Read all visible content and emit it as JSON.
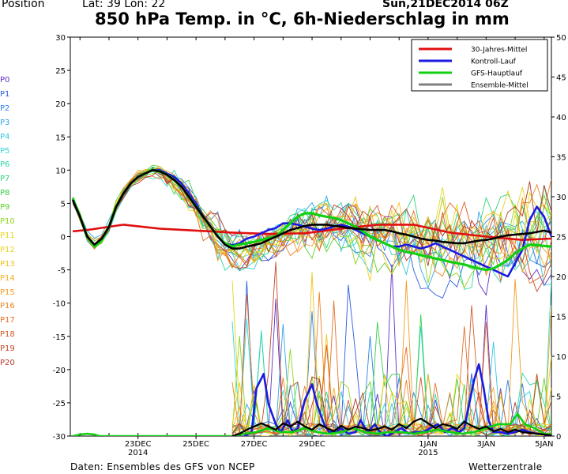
{
  "header": {
    "position_label": "Position",
    "lat_lon": "Lat: 39 Lon: 22",
    "date": "Sun,21DEC2014 06Z"
  },
  "title": "850 hPa Temp. in °C, 6h-Niederschlag in mm",
  "footer": {
    "source": "Daten: Ensembles des GFS von NCEP",
    "brand": "Wetterzentrale"
  },
  "members": [
    {
      "label": "P0",
      "color": "#5b2fc9"
    },
    {
      "label": "P1",
      "color": "#2a5be0"
    },
    {
      "label": "P2",
      "color": "#2a83e8"
    },
    {
      "label": "P3",
      "color": "#33a6e8"
    },
    {
      "label": "P4",
      "color": "#33c8e0"
    },
    {
      "label": "P5",
      "color": "#33d8d8"
    },
    {
      "label": "P6",
      "color": "#2fd6a8"
    },
    {
      "label": "P7",
      "color": "#2fd478"
    },
    {
      "label": "P8",
      "color": "#36d04a"
    },
    {
      "label": "P9",
      "color": "#5ed22e"
    },
    {
      "label": "P10",
      "color": "#8fd61e"
    },
    {
      "label": "P11",
      "color": "#e4d81a"
    },
    {
      "label": "P12",
      "color": "#f0d01a"
    },
    {
      "label": "P13",
      "color": "#f4c21c"
    },
    {
      "label": "P14",
      "color": "#f4ad1e"
    },
    {
      "label": "P15",
      "color": "#f49a22"
    },
    {
      "label": "P16",
      "color": "#ee8424"
    },
    {
      "label": "P17",
      "color": "#e46e26"
    },
    {
      "label": "P18",
      "color": "#d45a28"
    },
    {
      "label": "P19",
      "color": "#c4482a"
    },
    {
      "label": "P20",
      "color": "#b4382c"
    }
  ],
  "chart_data": {
    "type": "line",
    "x_unit": "hours after 21DEC2014 06Z",
    "xlim": [
      0,
      384
    ],
    "ylim": [
      -30,
      30
    ],
    "y_ticks": [
      -30,
      -25,
      -20,
      -15,
      -10,
      -5,
      0,
      5,
      10,
      15,
      20,
      25,
      30
    ],
    "y2lim": [
      0,
      50
    ],
    "y2_ticks": [
      0,
      5,
      10,
      15,
      20,
      25,
      30,
      35,
      40,
      45,
      50
    ],
    "x_ticks": [
      {
        "x": 42,
        "label": "23DEC",
        "label2": "2014"
      },
      {
        "x": 90,
        "label": "25DEC",
        "label2": ""
      },
      {
        "x": 138,
        "label": "27DEC",
        "label2": ""
      },
      {
        "x": 186,
        "label": "29DEC",
        "label2": ""
      },
      {
        "x": 282,
        "label": "1JAN",
        "label2": "2015"
      },
      {
        "x": 330,
        "label": "3JAN",
        "label2": ""
      },
      {
        "x": 378,
        "label": "5JAN",
        "label2": ""
      }
    ],
    "grid": false,
    "legend_position": "top-right",
    "legend": [
      {
        "name": "30-Jahres-Mittel",
        "color": "#e01010"
      },
      {
        "name": "Kontroll-Lauf",
        "color": "#1a1ae0"
      },
      {
        "name": "GFS-Hauptlauf",
        "color": "#10d010"
      },
      {
        "name": "Ensemble-Mittel",
        "color": "#808080"
      }
    ],
    "temp_series": [
      {
        "key": "climate",
        "color": "#e01010",
        "width": 2.6,
        "x": [
          -12,
          0,
          30,
          60,
          90,
          120,
          150,
          180,
          210,
          240,
          270,
          300,
          330,
          360,
          384
        ],
        "y": [
          0.8,
          1,
          1.8,
          1.2,
          0.9,
          0.6,
          0.4,
          0.5,
          1.2,
          1.8,
          1.8,
          0.6,
          0,
          -0.5,
          -0.3
        ]
      },
      {
        "key": "control",
        "color": "#1a1ae0",
        "width": 2.6,
        "x": [
          -12,
          -6,
          0,
          6,
          12,
          18,
          24,
          30,
          36,
          42,
          48,
          54,
          60,
          66,
          72,
          78,
          84,
          90,
          96,
          102,
          108,
          114,
          120,
          126,
          132,
          138,
          144,
          150,
          156,
          162,
          168,
          174,
          180,
          186,
          192,
          198,
          204,
          210,
          216,
          222,
          228,
          234,
          240,
          246,
          252,
          258,
          264,
          270,
          276,
          282,
          288,
          294,
          300,
          306,
          312,
          318,
          324,
          330,
          336,
          342,
          348,
          354,
          360,
          366,
          372,
          378,
          384
        ],
        "y": [
          5.5,
          3,
          0,
          -1.5,
          -0.5,
          1.5,
          4.5,
          6.5,
          8,
          9,
          9.5,
          10,
          10,
          9.5,
          9,
          8,
          6.5,
          5,
          3,
          1.5,
          0,
          -1,
          -1.3,
          -1,
          -0.3,
          0,
          0.5,
          1,
          1.3,
          2,
          2,
          1.8,
          1.5,
          1.2,
          1,
          1.2,
          1.5,
          1.8,
          1.5,
          1,
          0.5,
          0,
          -0.5,
          -1,
          -1.5,
          -1.5,
          -1.2,
          -1.5,
          -1.8,
          -1.5,
          -1,
          -1.5,
          -2,
          -2.5,
          -3,
          -3.5,
          -4,
          -4.5,
          -5,
          -5.5,
          -6,
          -4,
          -2,
          2.5,
          4.5,
          3,
          0
        ]
      },
      {
        "key": "oper",
        "color": "#10d010",
        "width": 3.2,
        "x": [
          -12,
          -6,
          0,
          6,
          12,
          18,
          24,
          30,
          36,
          42,
          48,
          54,
          60,
          66,
          72,
          78,
          84,
          90,
          96,
          102,
          108,
          114,
          120,
          126,
          132,
          138,
          144,
          150,
          156,
          162,
          168,
          174,
          180,
          186,
          192,
          198,
          204,
          210,
          216,
          222,
          228,
          234,
          240,
          246,
          252,
          258,
          264,
          270,
          276,
          282,
          288,
          294,
          300,
          306,
          312,
          318,
          324,
          330,
          336,
          342,
          348,
          354,
          360,
          366,
          372,
          378,
          384
        ],
        "y": [
          5.8,
          3,
          0,
          -1.5,
          -0.5,
          1.5,
          4.5,
          6.5,
          8,
          9,
          9.5,
          10,
          9.8,
          9.3,
          8.5,
          7.5,
          6,
          4.5,
          3,
          1.5,
          0,
          -1,
          -1.5,
          -1.2,
          -1,
          -0.8,
          -0.5,
          -0.2,
          0,
          1,
          2,
          3,
          3.5,
          3.5,
          3.2,
          3,
          2.8,
          2.5,
          2,
          1.5,
          0.8,
          0,
          -0.5,
          -1,
          -1.5,
          -2,
          -2.3,
          -2.5,
          -2.8,
          -3,
          -3.3,
          -3.5,
          -3.8,
          -4,
          -4.2,
          -4.5,
          -4.8,
          -5,
          -4.8,
          -4.2,
          -3.5,
          -2.5,
          -1.8,
          -1.2,
          -1.3,
          -1.4,
          -1.5
        ]
      },
      {
        "key": "mean",
        "color": "#000000",
        "width": 2.6,
        "x": [
          -12,
          -6,
          0,
          6,
          12,
          18,
          24,
          30,
          36,
          42,
          48,
          54,
          60,
          66,
          72,
          78,
          84,
          90,
          96,
          102,
          108,
          114,
          120,
          126,
          132,
          138,
          144,
          150,
          156,
          162,
          168,
          174,
          180,
          186,
          192,
          198,
          204,
          210,
          216,
          222,
          228,
          234,
          240,
          246,
          252,
          258,
          264,
          270,
          276,
          282,
          288,
          294,
          300,
          306,
          312,
          318,
          324,
          330,
          336,
          342,
          348,
          354,
          360,
          366,
          372,
          378,
          384
        ],
        "y": [
          5.5,
          3,
          0,
          -1.2,
          -0.3,
          1.5,
          4.5,
          6.5,
          8,
          9,
          9.5,
          10,
          9.8,
          9.3,
          8.5,
          7.5,
          6,
          4.5,
          3,
          1.5,
          0,
          -1.2,
          -1.8,
          -1.8,
          -1.5,
          -1.3,
          -1,
          -0.5,
          0,
          0.5,
          1,
          1.3,
          1.6,
          1.8,
          1.8,
          1.8,
          1.6,
          1.5,
          1.3,
          1.2,
          1.1,
          1,
          1,
          1,
          0.8,
          0.5,
          0.3,
          0,
          -0.3,
          -0.5,
          -0.6,
          -0.8,
          -0.9,
          -1,
          -1,
          -0.8,
          -0.6,
          -0.5,
          -0.3,
          0,
          0.2,
          0.3,
          0.4,
          0.5,
          0.7,
          0.9,
          0.6
        ]
      }
    ],
    "precip_series": [
      {
        "key": "control_precip",
        "color": "#1a1ae0",
        "width": 2.6,
        "x": [
          130,
          136,
          140,
          146,
          150,
          156,
          160,
          166,
          170,
          174,
          180,
          186,
          190,
          196,
          200,
          206,
          210,
          216,
          222,
          226,
          232,
          238,
          242,
          248,
          254,
          260,
          266,
          272,
          278,
          284,
          290,
          296,
          302,
          308,
          312,
          316,
          320,
          324,
          328,
          332,
          336,
          342,
          348,
          354,
          360,
          366,
          372,
          378,
          384
        ],
        "y": [
          0,
          0.5,
          6,
          7.8,
          4,
          1.5,
          0.5,
          2,
          0.5,
          1,
          4.5,
          6.5,
          4,
          1.5,
          0.5,
          0.5,
          1,
          0.3,
          0.5,
          2,
          0.5,
          1.5,
          0.5,
          0,
          0.5,
          1,
          0.3,
          0.5,
          0.5,
          1,
          1.5,
          0.5,
          1,
          0.5,
          1,
          4,
          7,
          9,
          6,
          2,
          0.5,
          0.5,
          0.3,
          0.5,
          0.8,
          0.5,
          0.3,
          0.2,
          0.1
        ]
      },
      {
        "key": "oper_precip",
        "color": "#10d010",
        "width": 2.6,
        "x": [
          -12,
          -6,
          0,
          6,
          10,
          120,
          130,
          140,
          150,
          160,
          170,
          180,
          190,
          200,
          210,
          220,
          230,
          240,
          250,
          260,
          270,
          280,
          290,
          300,
          310,
          320,
          330,
          340,
          350,
          356,
          362,
          370,
          378,
          384
        ],
        "y": [
          0,
          0.2,
          0.3,
          0.2,
          0,
          0,
          0.3,
          0.5,
          1,
          0.5,
          0.5,
          1,
          0.5,
          0.3,
          0.5,
          1,
          0.5,
          0.3,
          0.5,
          0.5,
          0.3,
          0.5,
          0.8,
          0.5,
          0.3,
          0.5,
          1,
          1.5,
          1.5,
          2.8,
          1.5,
          1,
          0.3,
          0.2
        ]
      },
      {
        "key": "mean_precip",
        "color": "#000000",
        "width": 2.2,
        "x": [
          120,
          126,
          132,
          138,
          144,
          150,
          156,
          162,
          168,
          174,
          180,
          186,
          192,
          198,
          204,
          210,
          216,
          222,
          228,
          234,
          240,
          246,
          252,
          258,
          264,
          270,
          276,
          282,
          288,
          294,
          300,
          306,
          312,
          318,
          324,
          330,
          336,
          342,
          348,
          354,
          360,
          366,
          372,
          378,
          384
        ],
        "y": [
          0,
          0.3,
          0.8,
          1.2,
          1.6,
          1.2,
          0.8,
          1.6,
          1.2,
          1.8,
          1.2,
          0.8,
          1.5,
          1,
          0.6,
          1.3,
          0.8,
          1.2,
          1,
          0.7,
          0.9,
          1.2,
          0.8,
          1.5,
          1,
          1.8,
          2.2,
          1.6,
          1,
          1.5,
          1.3,
          0.9,
          1.8,
          1.3,
          0.9,
          1.2,
          0.6,
          0.9,
          0.5,
          0.8,
          0.5,
          0.4,
          0.3,
          0.2,
          0.1
        ]
      }
    ]
  }
}
